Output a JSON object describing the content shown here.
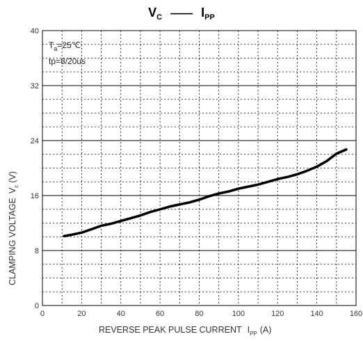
{
  "title": {
    "left_main": "V",
    "left_sub": "C",
    "dash": "——",
    "right_main": "I",
    "right_sub": "PP"
  },
  "annotations": {
    "ta_main": "T",
    "ta_sub": "a",
    "ta_rest": "=25℃",
    "tp": "tp=8/20us"
  },
  "chart_data": {
    "type": "line",
    "series": [
      {
        "points": [
          [
            11,
            10.1
          ],
          [
            15,
            10.3
          ],
          [
            20,
            10.6
          ],
          [
            25,
            11.1
          ],
          [
            30,
            11.6
          ],
          [
            35,
            11.9
          ],
          [
            40,
            12.3
          ],
          [
            45,
            12.7
          ],
          [
            50,
            13.1
          ],
          [
            55,
            13.6
          ],
          [
            60,
            14.0
          ],
          [
            65,
            14.4
          ],
          [
            70,
            14.7
          ],
          [
            75,
            15.0
          ],
          [
            80,
            15.4
          ],
          [
            85,
            15.9
          ],
          [
            90,
            16.3
          ],
          [
            95,
            16.6
          ],
          [
            100,
            17.0
          ],
          [
            105,
            17.3
          ],
          [
            110,
            17.6
          ],
          [
            115,
            18.0
          ],
          [
            120,
            18.4
          ],
          [
            125,
            18.7
          ],
          [
            130,
            19.1
          ],
          [
            135,
            19.6
          ],
          [
            140,
            20.2
          ],
          [
            145,
            21.0
          ],
          [
            150,
            22.1
          ],
          [
            155,
            22.7
          ]
        ]
      }
    ],
    "xlim": [
      0,
      160
    ],
    "ylim": [
      0,
      40
    ],
    "x_ticks": [
      0,
      20,
      40,
      60,
      80,
      100,
      120,
      140,
      160
    ],
    "y_ticks": [
      0,
      8,
      16,
      24,
      32,
      40
    ],
    "xlabel": {
      "main": "REVERSE PEAK PULSE CURRENT",
      "sym": "I",
      "sub": "PP",
      "unit": "(A)"
    },
    "ylabel": {
      "main": "CLAMPING VOLTAGE",
      "sym": "V",
      "sub": "c",
      "unit": "(V)"
    },
    "grid": true,
    "line_color": "#000000"
  }
}
